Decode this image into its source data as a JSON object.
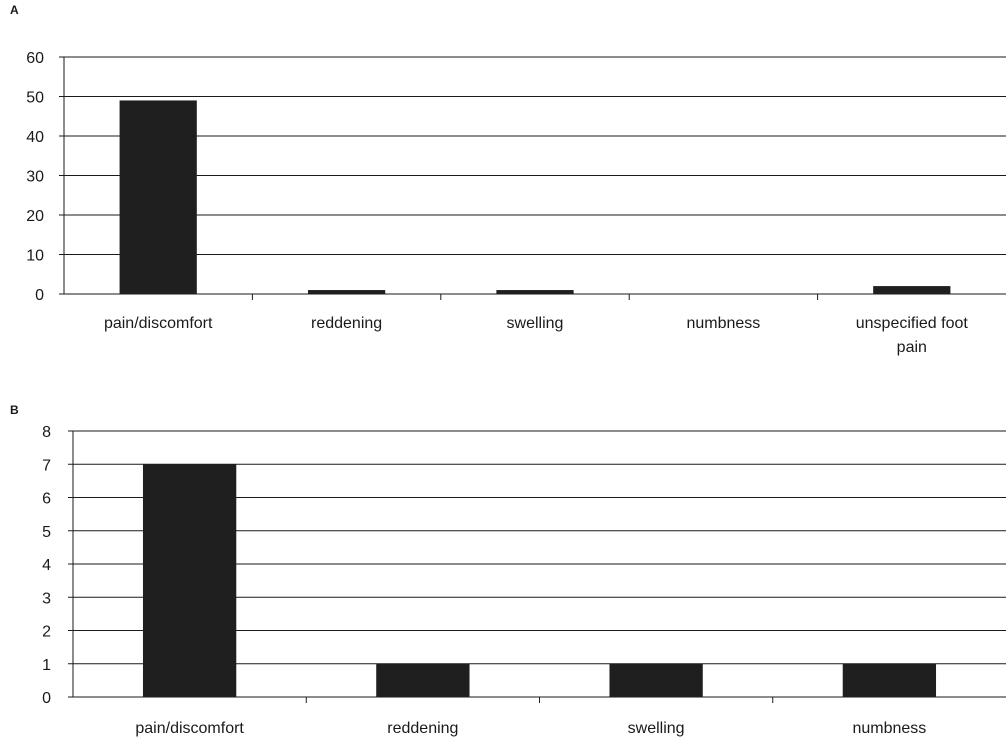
{
  "chart_data": [
    {
      "type": "bar",
      "panel_label": "A",
      "categories": [
        "pain/discomfort",
        "reddening",
        "swelling",
        "numbness",
        "unspecified foot pain"
      ],
      "category_lines": [
        [
          "pain/discomfort"
        ],
        [
          "reddening"
        ],
        [
          "swelling"
        ],
        [
          "numbness"
        ],
        [
          "unspecified foot",
          "pain"
        ]
      ],
      "values": [
        49,
        1,
        1,
        0,
        2
      ],
      "ylim": [
        0,
        60
      ],
      "yticks": [
        0,
        10,
        20,
        30,
        40,
        50,
        60
      ],
      "grid": true,
      "bar_color": "#1f1f1f"
    },
    {
      "type": "bar",
      "panel_label": "B",
      "categories": [
        "pain/discomfort",
        "reddening",
        "swelling",
        "numbness"
      ],
      "category_lines": [
        [
          "pain/discomfort"
        ],
        [
          "reddening"
        ],
        [
          "swelling"
        ],
        [
          "numbness"
        ]
      ],
      "values": [
        7,
        1,
        1,
        1
      ],
      "ylim": [
        0,
        8
      ],
      "yticks": [
        0,
        1,
        2,
        3,
        4,
        5,
        6,
        7,
        8
      ],
      "grid": true,
      "bar_color": "#1f1f1f"
    }
  ]
}
